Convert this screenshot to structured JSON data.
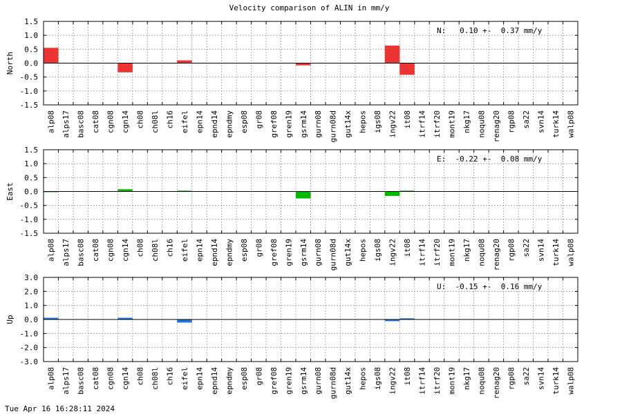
{
  "title": "Velocity comparison of ALIN in mm/y",
  "timestamp": "Tue Apr 16 16:28:11 2024",
  "chart_data": [
    {
      "type": "bar",
      "ylabel": "North",
      "annotation": "N:   0.10 +-  0.37 mm/y",
      "color": "#ee3333",
      "ylim": [
        -1.5,
        1.5
      ],
      "yticks": [
        -1.5,
        -1.0,
        -0.5,
        0.0,
        0.5,
        1.0,
        1.5
      ],
      "ytick_labels": [
        "-1.5",
        "-1.0",
        "-0.5",
        "0.0",
        "0.5",
        "1.0",
        "1.5"
      ],
      "grid": true,
      "categories": [
        "alp08",
        "alps17",
        "basc08",
        "cat08",
        "cgn08",
        "cgn14",
        "ch08",
        "ch08l",
        "ch16",
        "eifel",
        "epn14",
        "epnd14",
        "epndmy",
        "esp08",
        "gr08",
        "gref08",
        "gren19",
        "gsrm14",
        "gurn08",
        "gurn08d",
        "gut14x",
        "hepos",
        "igs08",
        "ingv22",
        "it08",
        "itrf14",
        "itrf20",
        "mont19",
        "nkg17",
        "noqu08",
        "renag20",
        "rgp08",
        "sa22",
        "svn14",
        "turk14",
        "walp08"
      ],
      "values": [
        0.55,
        0,
        0,
        0,
        0,
        -0.33,
        0,
        0,
        0,
        0.1,
        0,
        0,
        0,
        0,
        0,
        0,
        0,
        -0.08,
        0,
        0,
        0,
        0,
        0,
        0.63,
        -0.42,
        0,
        0,
        0,
        0,
        0,
        0,
        0,
        0,
        0,
        0,
        0
      ]
    },
    {
      "type": "bar",
      "ylabel": "East",
      "annotation": "E:  -0.22 +-  0.08 mm/y",
      "color": "#00bb00",
      "ylim": [
        -1.5,
        1.5
      ],
      "yticks": [
        -1.5,
        -1.0,
        -0.5,
        0.0,
        0.5,
        1.0,
        1.5
      ],
      "ytick_labels": [
        "-1.5",
        "-1.0",
        "-0.5",
        "0.0",
        "0.5",
        "1.0",
        "1.5"
      ],
      "grid": true,
      "categories": [
        "alp08",
        "alps17",
        "basc08",
        "cat08",
        "cgn08",
        "cgn14",
        "ch08",
        "ch08l",
        "ch16",
        "eifel",
        "epn14",
        "epnd14",
        "epndmy",
        "esp08",
        "gr08",
        "gref08",
        "gren19",
        "gsrm14",
        "gurn08",
        "gurn08d",
        "gut14x",
        "hepos",
        "igs08",
        "ingv22",
        "it08",
        "itrf14",
        "itrf20",
        "mont19",
        "nkg17",
        "noqu08",
        "renag20",
        "rgp08",
        "sa22",
        "svn14",
        "turk14",
        "walp08"
      ],
      "values": [
        -0.02,
        0,
        0,
        0,
        0,
        0.08,
        0,
        0,
        0,
        0.03,
        0,
        0,
        0,
        0,
        0,
        0,
        0,
        -0.25,
        0,
        0,
        0,
        0,
        0,
        -0.16,
        0.03,
        0,
        0,
        0,
        0,
        0,
        0,
        0,
        0,
        0,
        0,
        0
      ]
    },
    {
      "type": "bar",
      "ylabel": "Up",
      "annotation": "U:  -0.15 +-  0.16 mm/y",
      "color": "#1a75e0",
      "ylim": [
        -3.0,
        3.0
      ],
      "yticks": [
        -3.0,
        -2.0,
        -1.0,
        0.0,
        1.0,
        2.0,
        3.0
      ],
      "ytick_labels": [
        "-3.0",
        "-2.0",
        "-1.0",
        "0.0",
        "1.0",
        "2.0",
        "3.0"
      ],
      "grid": true,
      "categories": [
        "alp08",
        "alps17",
        "basc08",
        "cat08",
        "cgn08",
        "cgn14",
        "ch08",
        "ch08l",
        "ch16",
        "eifel",
        "epn14",
        "epnd14",
        "epndmy",
        "esp08",
        "gr08",
        "gref08",
        "gren19",
        "gsrm14",
        "gurn08",
        "gurn08d",
        "gut14x",
        "hepos",
        "igs08",
        "ingv22",
        "it08",
        "itrf14",
        "itrf20",
        "mont19",
        "nkg17",
        "noqu08",
        "renag20",
        "rgp08",
        "sa22",
        "svn14",
        "turk14",
        "walp08"
      ],
      "values": [
        0.12,
        0,
        0,
        0,
        0,
        0.12,
        0,
        0,
        0,
        -0.22,
        0,
        0,
        0,
        0,
        0,
        0,
        0,
        0,
        0,
        0,
        0,
        0,
        0,
        -0.12,
        0.08,
        0,
        0,
        0,
        0,
        0,
        0,
        0,
        0,
        0,
        0,
        0
      ]
    }
  ]
}
